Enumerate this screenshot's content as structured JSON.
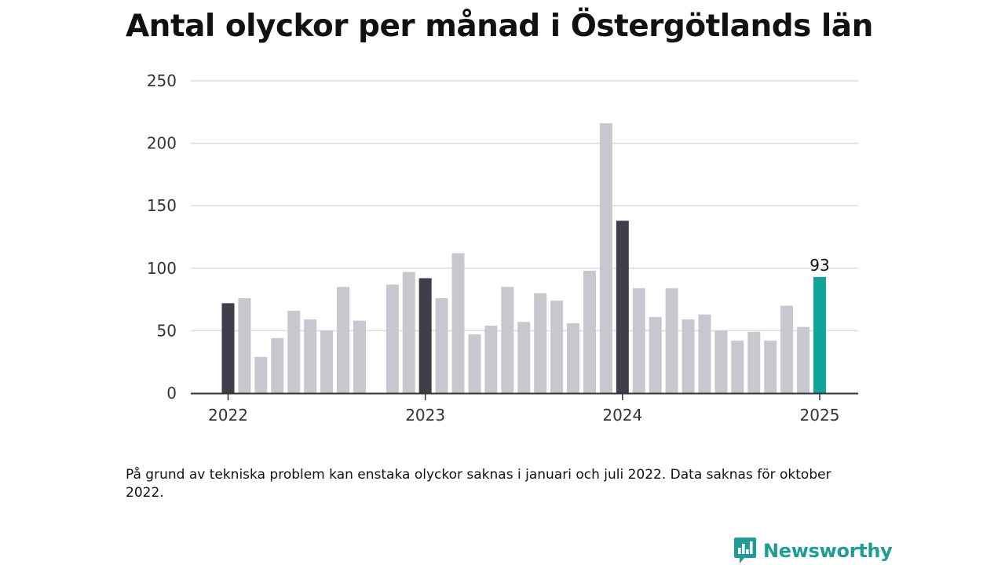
{
  "colors": {
    "bar": "#c8c7cf",
    "highlight": "#3f3e4a",
    "current": "#12a39a",
    "grid": "#dcdcdc",
    "axis": "#333333",
    "brand": "#1f9c95"
  },
  "chart_data": {
    "type": "bar",
    "title": "Antal olyckor per månad i Östergötlands län",
    "xlabel": "",
    "ylabel": "",
    "ylim": [
      0,
      250
    ],
    "yticks": [
      0,
      50,
      100,
      150,
      200,
      250
    ],
    "grid": true,
    "x_ticks": [
      {
        "label": "2022",
        "month": "2022-01"
      },
      {
        "label": "2023",
        "month": "2023-01"
      },
      {
        "label": "2024",
        "month": "2024-01"
      },
      {
        "label": "2025",
        "month": "2025-01"
      }
    ],
    "bars": [
      {
        "month": "2022-01",
        "value": 72,
        "kind": "january"
      },
      {
        "month": "2022-02",
        "value": 76,
        "kind": "normal"
      },
      {
        "month": "2022-03",
        "value": 29,
        "kind": "normal"
      },
      {
        "month": "2022-04",
        "value": 44,
        "kind": "normal"
      },
      {
        "month": "2022-05",
        "value": 66,
        "kind": "normal"
      },
      {
        "month": "2022-06",
        "value": 59,
        "kind": "normal"
      },
      {
        "month": "2022-07",
        "value": 50,
        "kind": "normal"
      },
      {
        "month": "2022-08",
        "value": 85,
        "kind": "normal"
      },
      {
        "month": "2022-09",
        "value": 58,
        "kind": "normal"
      },
      {
        "month": "2022-10",
        "value": null,
        "kind": "missing"
      },
      {
        "month": "2022-11",
        "value": 87,
        "kind": "normal"
      },
      {
        "month": "2022-12",
        "value": 97,
        "kind": "normal"
      },
      {
        "month": "2023-01",
        "value": 92,
        "kind": "january"
      },
      {
        "month": "2023-02",
        "value": 76,
        "kind": "normal"
      },
      {
        "month": "2023-03",
        "value": 112,
        "kind": "normal"
      },
      {
        "month": "2023-04",
        "value": 47,
        "kind": "normal"
      },
      {
        "month": "2023-05",
        "value": 54,
        "kind": "normal"
      },
      {
        "month": "2023-06",
        "value": 85,
        "kind": "normal"
      },
      {
        "month": "2023-07",
        "value": 57,
        "kind": "normal"
      },
      {
        "month": "2023-08",
        "value": 80,
        "kind": "normal"
      },
      {
        "month": "2023-09",
        "value": 74,
        "kind": "normal"
      },
      {
        "month": "2023-10",
        "value": 56,
        "kind": "normal"
      },
      {
        "month": "2023-11",
        "value": 98,
        "kind": "normal"
      },
      {
        "month": "2023-12",
        "value": 216,
        "kind": "normal"
      },
      {
        "month": "2024-01",
        "value": 138,
        "kind": "january"
      },
      {
        "month": "2024-02",
        "value": 84,
        "kind": "normal"
      },
      {
        "month": "2024-03",
        "value": 61,
        "kind": "normal"
      },
      {
        "month": "2024-04",
        "value": 84,
        "kind": "normal"
      },
      {
        "month": "2024-05",
        "value": 59,
        "kind": "normal"
      },
      {
        "month": "2024-06",
        "value": 63,
        "kind": "normal"
      },
      {
        "month": "2024-07",
        "value": 50,
        "kind": "normal"
      },
      {
        "month": "2024-08",
        "value": 42,
        "kind": "normal"
      },
      {
        "month": "2024-09",
        "value": 49,
        "kind": "normal"
      },
      {
        "month": "2024-10",
        "value": 42,
        "kind": "normal"
      },
      {
        "month": "2024-11",
        "value": 70,
        "kind": "normal"
      },
      {
        "month": "2024-12",
        "value": 53,
        "kind": "normal"
      },
      {
        "month": "2025-01",
        "value": 93,
        "kind": "current",
        "label": "93"
      }
    ]
  },
  "footnote": "På grund av tekniska problem kan enstaka olyckor saknas i januari och juli 2022. Data saknas för oktober 2022.",
  "brand": {
    "name": "Newsworthy",
    "icon": "newsworthy-logo-icon"
  }
}
